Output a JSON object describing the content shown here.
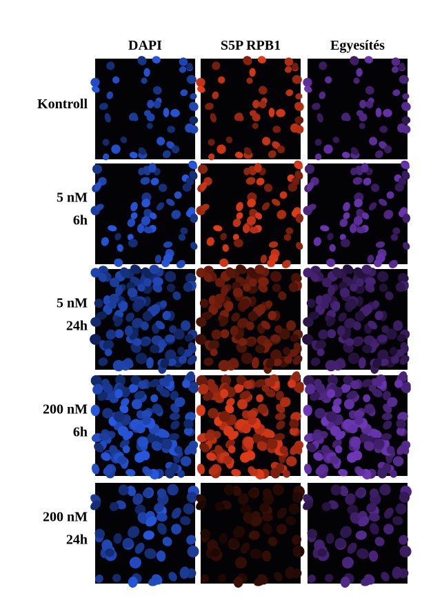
{
  "columns": [
    "DAPI",
    "S5P RPB1",
    "Egyesítés"
  ],
  "rows": [
    {
      "label": [
        "Kontroll"
      ]
    },
    {
      "label": [
        "5 nM",
        "6h"
      ]
    },
    {
      "label": [
        "5 nM",
        "24h"
      ]
    },
    {
      "label": [
        "200 nM",
        "6h"
      ]
    },
    {
      "label": [
        "200 nM",
        "24h"
      ]
    }
  ]
}
